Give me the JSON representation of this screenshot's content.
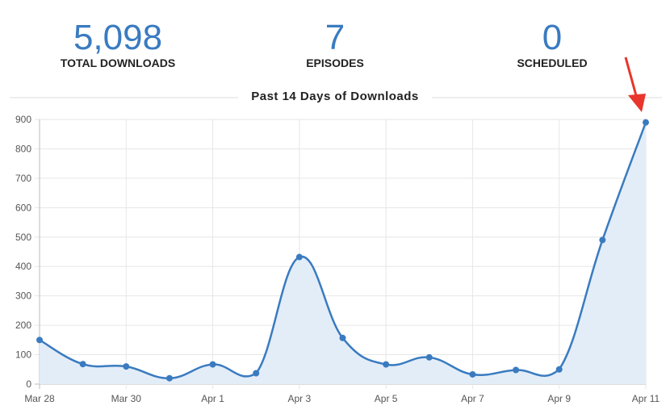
{
  "stats": [
    {
      "value": "5,098",
      "label": "TOTAL DOWNLOADS"
    },
    {
      "value": "7",
      "label": "EPISODES"
    },
    {
      "value": "0",
      "label": "SCHEDULED"
    }
  ],
  "colors": {
    "accent": "#3a7bc0",
    "fill": "#e3edf8",
    "arrow": "#e8362c",
    "grid": "#e6e6e6"
  },
  "chart_data": {
    "type": "area",
    "title": "Past 14 Days of Downloads",
    "x": [
      "Mar 28",
      "Mar 29",
      "Mar 30",
      "Mar 31",
      "Apr 1",
      "Apr 2",
      "Apr 3",
      "Apr 4",
      "Apr 5",
      "Apr 6",
      "Apr 7",
      "Apr 8",
      "Apr 9",
      "Apr 10",
      "Apr 11"
    ],
    "x_tick_labels": [
      "Mar 28",
      "Mar 30",
      "Apr 1",
      "Apr 3",
      "Apr 5",
      "Apr 7",
      "Apr 9",
      "Apr 11"
    ],
    "values": [
      150,
      68,
      60,
      20,
      67,
      37,
      432,
      157,
      67,
      91,
      33,
      48,
      50,
      490,
      890
    ],
    "ylim": [
      0,
      900
    ],
    "y_ticks": [
      0,
      100,
      200,
      300,
      400,
      500,
      600,
      700,
      800,
      900
    ],
    "grid": true,
    "annotation": "red arrow pointing at last point"
  }
}
